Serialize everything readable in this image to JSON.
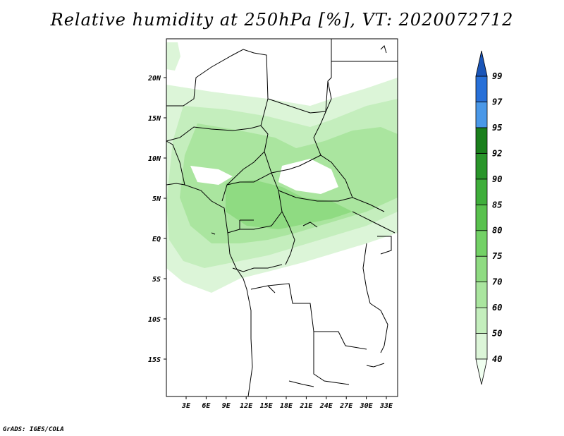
{
  "title": "Relative humidity at 250hPa [%], VT: 2020072712",
  "credit": "GrADS: IGES/COLA",
  "map": {
    "region": "Central Africa",
    "lat_ticks": [
      "20N",
      "15N",
      "10N",
      "5N",
      "EQ",
      "5S",
      "10S",
      "15S"
    ],
    "lon_ticks": [
      "3E",
      "6E",
      "9E",
      "12E",
      "15E",
      "18E",
      "21E",
      "24E",
      "27E",
      "30E",
      "33E"
    ]
  },
  "colorbar": {
    "levels": [
      "40",
      "50",
      "60",
      "70",
      "75",
      "80",
      "85",
      "90",
      "92",
      "95",
      "97",
      "99"
    ],
    "colors": [
      "#f0fff0",
      "#dcf5d8",
      "#c4eebd",
      "#aae59f",
      "#8fdb82",
      "#73d166",
      "#59c14e",
      "#3fae3b",
      "#29952a",
      "#1a7f1c",
      "#4a98e8",
      "#2870d8",
      "#1a55b8"
    ]
  }
}
